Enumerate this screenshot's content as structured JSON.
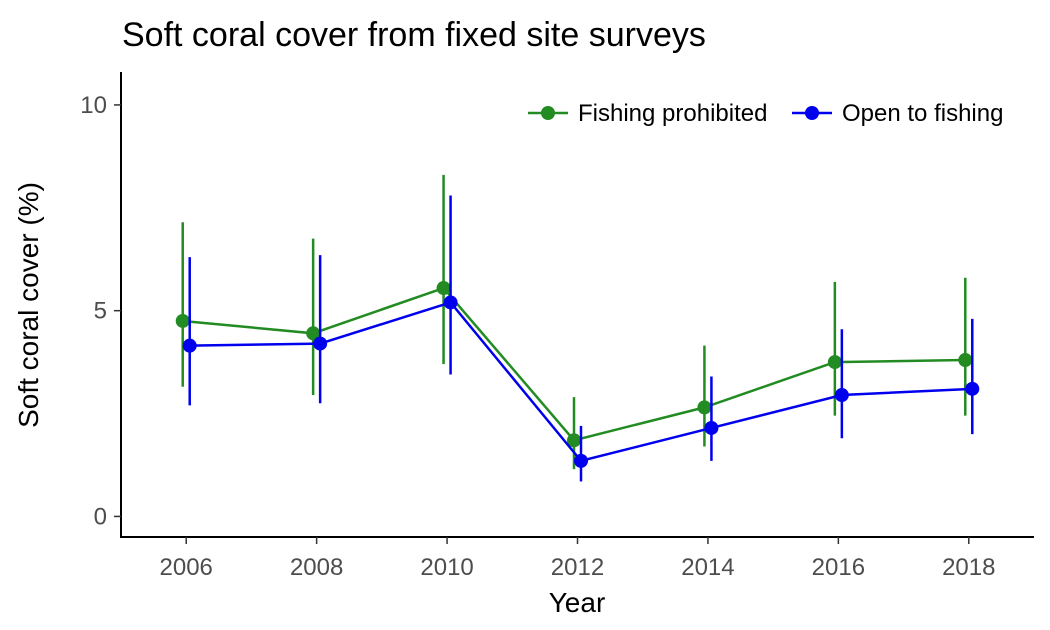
{
  "chart_data": {
    "type": "line",
    "title": "Soft coral cover from fixed site surveys",
    "xlabel": "Year",
    "ylabel": "Soft coral cover (%)",
    "x": [
      2006,
      2008,
      2010,
      2012,
      2014,
      2016,
      2018
    ],
    "xlim": [
      2005,
      2019
    ],
    "ylim": [
      -0.5,
      10.8
    ],
    "yticks": [
      0,
      5,
      10
    ],
    "grid": false,
    "legend_position": "top-right",
    "series": [
      {
        "name": "Fishing prohibited",
        "color": "#228B22",
        "values": [
          4.75,
          4.45,
          5.55,
          1.85,
          2.65,
          3.75,
          3.8
        ],
        "lower": [
          3.15,
          2.95,
          3.7,
          1.15,
          1.7,
          2.45,
          2.45
        ],
        "upper": [
          7.15,
          6.75,
          8.3,
          2.9,
          4.15,
          5.7,
          5.8
        ]
      },
      {
        "name": "Open to fishing",
        "color": "#0000EE",
        "values": [
          4.15,
          4.2,
          5.2,
          1.35,
          2.15,
          2.95,
          3.1
        ],
        "lower": [
          2.7,
          2.75,
          3.45,
          0.85,
          1.35,
          1.9,
          2.0
        ],
        "upper": [
          6.3,
          6.35,
          7.8,
          2.2,
          3.4,
          4.55,
          4.8
        ]
      }
    ]
  }
}
